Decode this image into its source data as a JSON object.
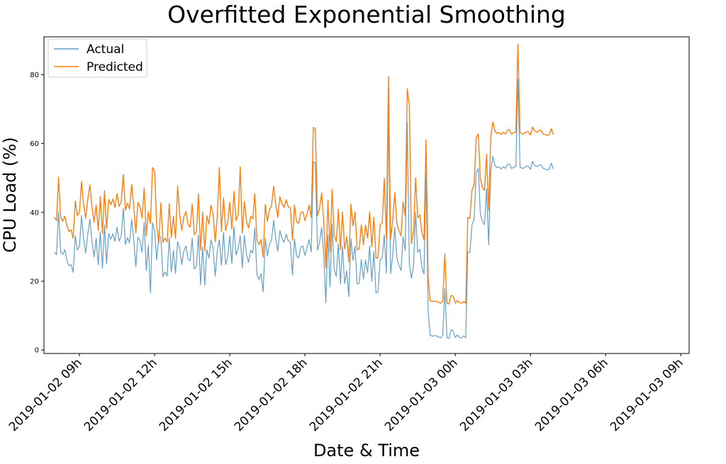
{
  "chart_data": {
    "type": "line",
    "title": "Overfitted Exponential Smoothing",
    "xlabel": "Date & Time",
    "ylabel": "CPU Load (%)",
    "x_range": [
      "2019-01-02 07:35",
      "2019-01-03 09:20"
    ],
    "ylim": [
      -1,
      91
    ],
    "y_ticks": [
      0,
      20,
      40,
      60,
      80
    ],
    "x_ticks": [
      "2019-01-02 09h",
      "2019-01-02 12h",
      "2019-01-02 15h",
      "2019-01-02 18h",
      "2019-01-02 21h",
      "2019-01-03 00h",
      "2019-01-03 03h",
      "2019-01-03 06h",
      "2019-01-03 09h"
    ],
    "x_start": "2019-01-02 08:00",
    "x_step_minutes": 5,
    "legend_position": "top-left",
    "grid": false,
    "series": [
      {
        "name": "Actual",
        "color": "#1f77b4",
        "values": [
          28.4,
          27.7,
          40.2,
          28.5,
          27.8,
          29.2,
          25.9,
          24.5,
          24.8,
          22.6,
          33.2,
          29.1,
          30.2,
          39.1,
          32.1,
          28.2,
          33.8,
          38.0,
          31.5,
          27.1,
          32.4,
          24.8,
          34.4,
          23.7,
          36.4,
          25.1,
          33.9,
          32.2,
          33.8,
          31.6,
          35.7,
          31.6,
          33.2,
          41.1,
          30.6,
          32.7,
          31.1,
          38.0,
          32.0,
          24.2,
          32.8,
          31.8,
          28.4,
          37.1,
          23.1,
          30.4,
          16.6,
          37.0,
          34.6,
          26.2,
          33.1,
          32.9,
          21.3,
          22.7,
          21.5,
          32.6,
          22.7,
          29.0,
          22.3,
          31.5,
          29.6,
          24.8,
          28.8,
          30.2,
          26.4,
          25.9,
          32.5,
          23.5,
          24.3,
          33.4,
          19.0,
          30.0,
          18.8,
          29.1,
          26.7,
          32.0,
          29.7,
          21.4,
          28.7,
          32.0,
          24.6,
          34.2,
          24.8,
          27.0,
          33.1,
          25.1,
          35.9,
          27.6,
          29.4,
          33.2,
          23.9,
          33.3,
          27.6,
          25.5,
          29.0,
          28.2,
          35.5,
          21.9,
          20.5,
          22.2,
          16.9,
          32.4,
          27.3,
          30.8,
          32.0,
          37.7,
          32.4,
          28.7,
          34.7,
          32.5,
          31.3,
          33.7,
          31.7,
          31.5,
          21.8,
          32.3,
          27.3,
          26.8,
          29.9,
          30.2,
          27.5,
          29.8,
          32.1,
          28.5,
          54.7,
          54.3,
          29.0,
          31.2,
          35.7,
          27.5,
          13.8,
          33.4,
          18.3,
          36.6,
          23.3,
          21.4,
          31.0,
          19.1,
          30.2,
          19.3,
          23.0,
          15.5,
          32.4,
          26.0,
          30.1,
          19.2,
          19.4,
          26.3,
          20.6,
          26.2,
          22.5,
          30.2,
          20.0,
          28.6,
          16.6,
          16.8,
          26.3,
          26.8,
          33.5,
          22.3,
          69.5,
          22.2,
          27.3,
          35.7,
          26.8,
          24.6,
          23.1,
          33.0,
          28.9,
          66.0,
          25.1,
          20.8,
          24.4,
          40.0,
          28.4,
          29.3,
          24.1,
          22.1,
          51.2,
          11.0,
          4.3,
          4.0,
          4.2,
          4.1,
          3.8,
          3.5,
          4.4,
          17.9,
          3.6,
          3.4,
          5.9,
          5.5,
          3.6,
          4.4,
          3.7,
          3.5,
          4.1,
          3.6,
          28.5,
          28.3,
          36.4,
          38.0,
          51.6,
          52.8,
          39.7,
          37.3,
          36.4,
          46.9,
          30.6,
          52.0,
          56.3,
          53.6,
          53.0,
          53.2,
          52.6,
          53.3,
          52.8,
          53.9,
          54.0,
          52.7,
          53.2,
          53.3,
          78.6,
          53.2,
          52.8,
          52.9,
          53.4,
          53.4,
          52.5,
          54.8,
          53.7,
          53.3,
          53.7,
          53.8,
          52.8,
          52.6,
          52.3,
          52.6,
          54.3,
          52.6
        ]
      },
      {
        "name": "Predicted",
        "color": "#ff7f0e",
        "values": [
          38.6,
          37.6,
          50.2,
          38.5,
          37.4,
          38.9,
          36.1,
          34.4,
          34.9,
          32.5,
          43.3,
          39.1,
          40.0,
          49.0,
          42.0,
          38.3,
          43.9,
          48.0,
          41.6,
          37.2,
          42.2,
          34.7,
          44.6,
          33.9,
          46.3,
          35.2,
          43.8,
          42.2,
          43.9,
          41.4,
          45.5,
          41.7,
          43.0,
          51.0,
          40.6,
          42.7,
          41.0,
          48.1,
          42.0,
          34.0,
          42.9,
          41.7,
          38.4,
          47.1,
          33.2,
          40.2,
          36.8,
          53.0,
          51.8,
          36.2,
          31.1,
          42.8,
          31.3,
          32.5,
          31.4,
          42.5,
          32.7,
          38.8,
          32.4,
          47.6,
          39.5,
          34.8,
          38.7,
          40.2,
          36.5,
          35.7,
          42.4,
          33.5,
          34.3,
          45.4,
          29.0,
          40.1,
          28.8,
          39.0,
          36.6,
          42.1,
          39.6,
          31.4,
          38.5,
          53.0,
          34.5,
          44.2,
          34.7,
          37.1,
          42.9,
          35.1,
          46.1,
          37.6,
          39.2,
          53.2,
          33.9,
          43.1,
          37.4,
          35.5,
          38.9,
          38.1,
          45.5,
          31.9,
          30.6,
          32.1,
          27.0,
          42.3,
          37.4,
          40.7,
          41.9,
          47.6,
          42.3,
          38.6,
          44.6,
          42.5,
          41.4,
          43.7,
          41.6,
          41.3,
          31.9,
          42.1,
          37.3,
          36.8,
          39.9,
          40.2,
          37.6,
          39.6,
          42.1,
          38.5,
          64.7,
          64.3,
          39.0,
          41.1,
          45.6,
          37.4,
          23.8,
          43.5,
          28.4,
          46.6,
          33.2,
          31.5,
          40.9,
          29.2,
          40.1,
          29.4,
          33.0,
          25.5,
          42.4,
          36.1,
          40.1,
          29.1,
          29.4,
          36.4,
          30.6,
          36.3,
          32.5,
          40.2,
          30.0,
          38.6,
          26.7,
          26.8,
          36.4,
          36.9,
          49.9,
          32.3,
          79.5,
          32.2,
          37.3,
          45.7,
          36.9,
          34.6,
          33.2,
          43.0,
          38.9,
          75.9,
          71.3,
          30.9,
          34.4,
          50.0,
          38.4,
          39.3,
          34.1,
          32.0,
          61.1,
          21.0,
          14.3,
          14.1,
          14.2,
          14.1,
          13.9,
          13.6,
          14.3,
          27.9,
          13.6,
          13.4,
          15.9,
          15.6,
          13.6,
          14.4,
          13.8,
          13.6,
          14.1,
          13.6,
          38.5,
          38.3,
          46.4,
          48.0,
          61.6,
          62.8,
          49.8,
          47.2,
          46.4,
          56.9,
          40.5,
          62.0,
          66.3,
          63.6,
          62.9,
          63.2,
          62.6,
          63.3,
          62.8,
          63.9,
          64.0,
          62.7,
          63.2,
          63.3,
          88.8,
          63.3,
          62.8,
          62.9,
          63.4,
          63.4,
          62.5,
          64.8,
          63.7,
          63.3,
          63.7,
          63.9,
          62.8,
          62.6,
          62.3,
          62.6,
          64.3,
          62.6
        ]
      }
    ]
  }
}
